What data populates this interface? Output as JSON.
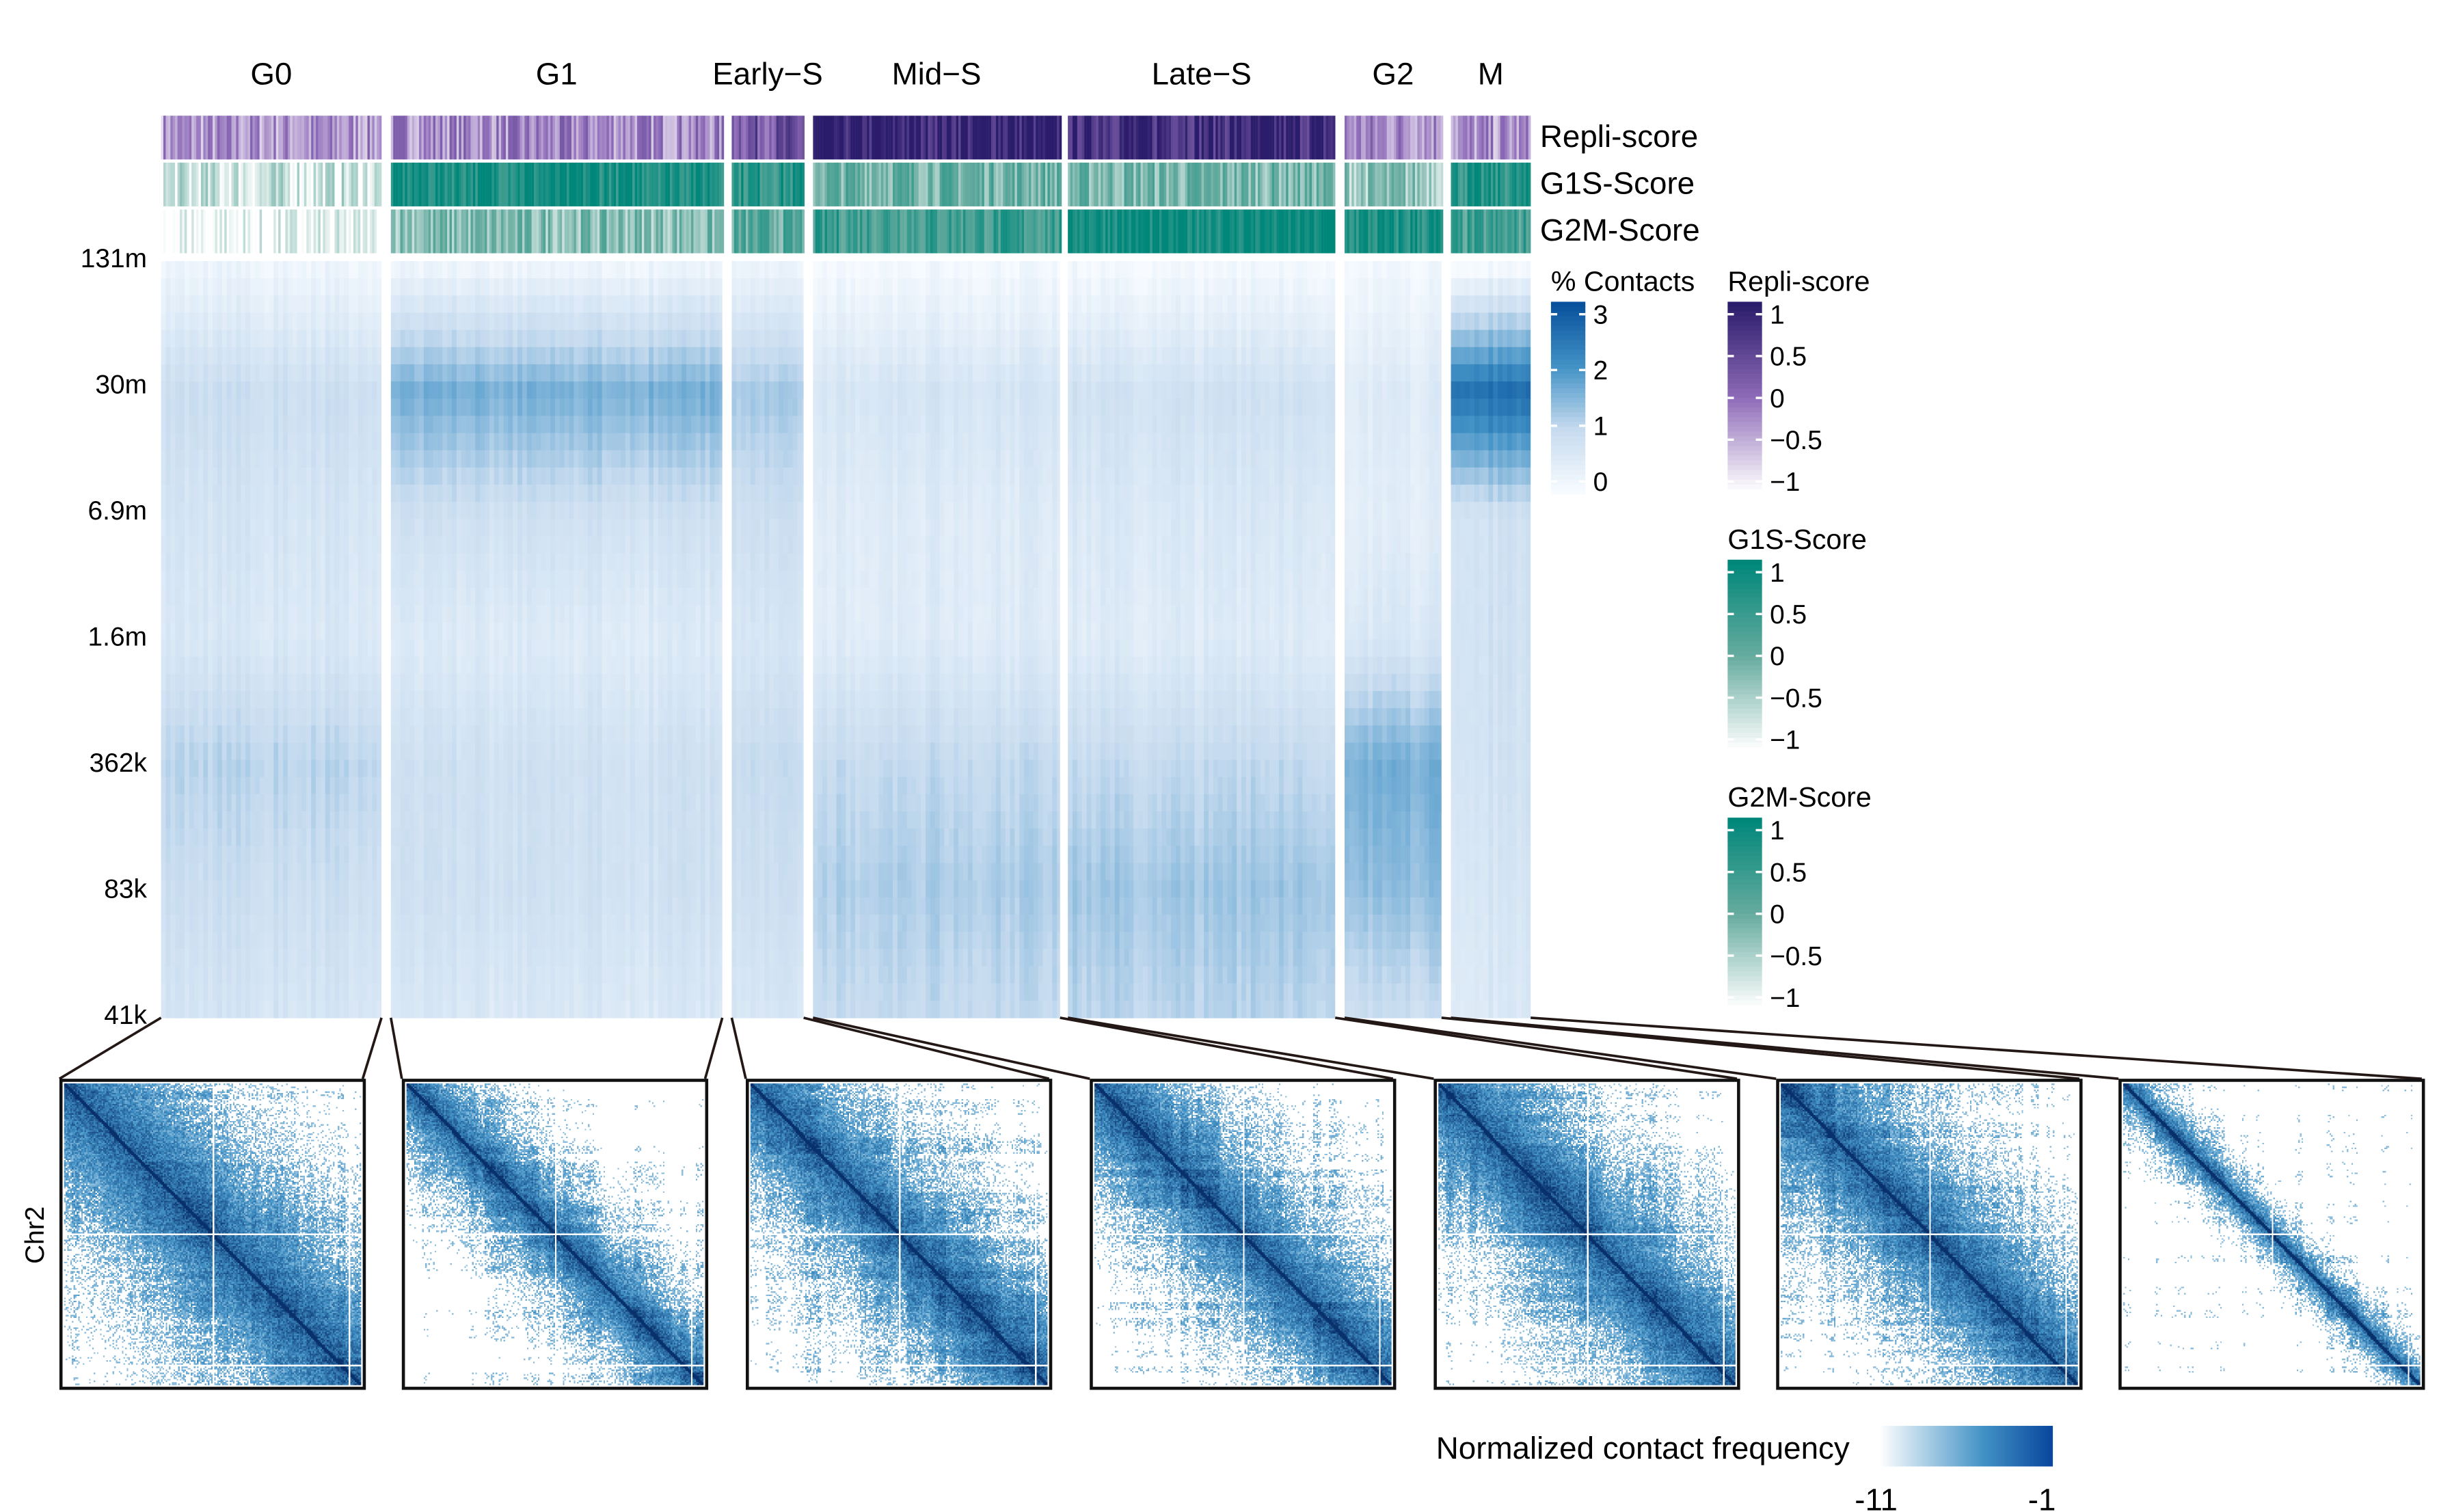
{
  "chart_data": {
    "type": "heatmap",
    "groups": [
      "G0",
      "G1",
      "Early−S",
      "Mid−S",
      "Late−S",
      "G2",
      "M"
    ],
    "ytick_labels": [
      "131m",
      "30m",
      "6.9m",
      "1.6m",
      "362k",
      "83k",
      "41k"
    ],
    "contact_profiles_pct": {
      "G0": [
        0.2,
        0.9,
        0.7,
        0.6,
        1.1,
        0.9,
        0.7
      ],
      "G1": [
        0.2,
        1.6,
        0.8,
        0.5,
        0.8,
        0.8,
        0.6
      ],
      "Early-S": [
        0.2,
        1.2,
        0.8,
        0.6,
        0.9,
        0.8,
        0.6
      ],
      "Mid-S": [
        0.1,
        0.7,
        0.5,
        0.5,
        1.0,
        1.2,
        1.0
      ],
      "Late-S": [
        0.1,
        0.8,
        0.6,
        0.5,
        1.0,
        1.3,
        1.1
      ],
      "G2": [
        0.1,
        0.5,
        0.4,
        0.6,
        1.6,
        1.4,
        0.9
      ],
      "M": [
        0.1,
        2.6,
        0.8,
        0.8,
        0.8,
        0.7,
        0.6
      ]
    },
    "annotation_tracks": [
      {
        "name": "Repli-score",
        "mean_by_group": [
          -0.3,
          -0.2,
          0.3,
          0.9,
          0.8,
          -0.2,
          -0.3
        ],
        "color": "#2b1d6b"
      },
      {
        "name": "G1S-Score",
        "mean_by_group": [
          -0.7,
          0.8,
          0.6,
          0.0,
          -0.1,
          -0.3,
          0.6
        ],
        "color": "#00877a"
      },
      {
        "name": "G2M-Score",
        "mean_by_group": [
          -0.95,
          -0.2,
          0.1,
          0.4,
          0.9,
          0.7,
          0.3
        ],
        "color": "#00877a"
      }
    ],
    "legends": [
      {
        "title": "% Contacts",
        "ticks": [
          "3",
          "2",
          "1",
          "0"
        ],
        "colors": [
          "#f7fbff",
          "#c6dbef",
          "#4292c6",
          "#08519c"
        ]
      },
      {
        "title": "Repli-score",
        "ticks": [
          "1",
          "0.5",
          "0",
          "−0.5",
          "−1"
        ],
        "colors": [
          "#ffffff",
          "#8e6bb8",
          "#2b1d6b"
        ]
      },
      {
        "title": "G1S-Score",
        "ticks": [
          "1",
          "0.5",
          "0",
          "−0.5",
          "−1"
        ],
        "colors": [
          "#ffffff",
          "#66ab9f",
          "#00877a"
        ]
      },
      {
        "title": "G2M-Score",
        "ticks": [
          "1",
          "0.5",
          "0",
          "−0.5",
          "−1"
        ],
        "colors": [
          "#ffffff",
          "#66ab9f",
          "#00877a"
        ]
      }
    ],
    "contact_maps": {
      "ylabel": "Chr2",
      "colorbar_label": "Normalized contact frequency",
      "colorbar_min": "-11",
      "colorbar_max": "-1",
      "colors": [
        "#ffffff",
        "#4292c6",
        "#08306b"
      ]
    }
  }
}
